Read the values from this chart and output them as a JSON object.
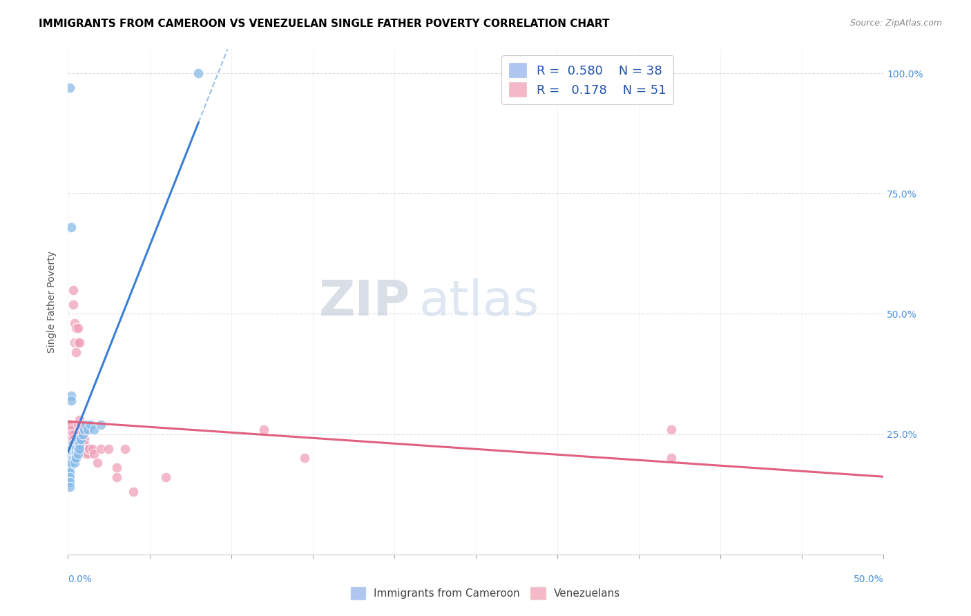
{
  "title": "IMMIGRANTS FROM CAMEROON VS VENEZUELAN SINGLE FATHER POVERTY CORRELATION CHART",
  "source": "Source: ZipAtlas.com",
  "ylabel": "Single Father Poverty",
  "yticks": [
    0.0,
    0.25,
    0.5,
    0.75,
    1.0
  ],
  "ytick_labels": [
    "",
    "25.0%",
    "50.0%",
    "75.0%",
    "100.0%"
  ],
  "xlim": [
    0.0,
    0.5
  ],
  "ylim": [
    0.0,
    1.05
  ],
  "watermark_zip": "ZIP",
  "watermark_atlas": "atlas",
  "cameroon_color": "#88bae8",
  "venezuelan_color": "#f0a0b8",
  "cameroon_line_color": "#3a7fd5",
  "venezuelan_line_color": "#e06080",
  "cameroon_points": [
    [
      0.001,
      0.97
    ],
    [
      0.001,
      0.2
    ],
    [
      0.001,
      0.18
    ],
    [
      0.001,
      0.17
    ],
    [
      0.001,
      0.16
    ],
    [
      0.001,
      0.15
    ],
    [
      0.001,
      0.14
    ],
    [
      0.002,
      0.68
    ],
    [
      0.002,
      0.33
    ],
    [
      0.002,
      0.32
    ],
    [
      0.002,
      0.22
    ],
    [
      0.002,
      0.2
    ],
    [
      0.002,
      0.19
    ],
    [
      0.003,
      0.23
    ],
    [
      0.003,
      0.22
    ],
    [
      0.003,
      0.21
    ],
    [
      0.003,
      0.2
    ],
    [
      0.004,
      0.22
    ],
    [
      0.004,
      0.21
    ],
    [
      0.004,
      0.2
    ],
    [
      0.004,
      0.19
    ],
    [
      0.005,
      0.22
    ],
    [
      0.005,
      0.21
    ],
    [
      0.005,
      0.2
    ],
    [
      0.006,
      0.24
    ],
    [
      0.006,
      0.22
    ],
    [
      0.006,
      0.21
    ],
    [
      0.007,
      0.23
    ],
    [
      0.007,
      0.22
    ],
    [
      0.008,
      0.24
    ],
    [
      0.009,
      0.25
    ],
    [
      0.01,
      0.26
    ],
    [
      0.011,
      0.27
    ],
    [
      0.012,
      0.26
    ],
    [
      0.014,
      0.27
    ],
    [
      0.016,
      0.26
    ],
    [
      0.02,
      0.27
    ],
    [
      0.08,
      1.0
    ]
  ],
  "venezuelan_points": [
    [
      0.001,
      0.27
    ],
    [
      0.002,
      0.27
    ],
    [
      0.002,
      0.26
    ],
    [
      0.002,
      0.25
    ],
    [
      0.002,
      0.24
    ],
    [
      0.002,
      0.23
    ],
    [
      0.002,
      0.22
    ],
    [
      0.002,
      0.21
    ],
    [
      0.003,
      0.25
    ],
    [
      0.003,
      0.24
    ],
    [
      0.003,
      0.23
    ],
    [
      0.003,
      0.22
    ],
    [
      0.003,
      0.21
    ],
    [
      0.003,
      0.52
    ],
    [
      0.003,
      0.55
    ],
    [
      0.004,
      0.48
    ],
    [
      0.004,
      0.44
    ],
    [
      0.005,
      0.47
    ],
    [
      0.005,
      0.42
    ],
    [
      0.006,
      0.47
    ],
    [
      0.006,
      0.44
    ],
    [
      0.006,
      0.27
    ],
    [
      0.007,
      0.28
    ],
    [
      0.007,
      0.26
    ],
    [
      0.007,
      0.44
    ],
    [
      0.008,
      0.25
    ],
    [
      0.008,
      0.24
    ],
    [
      0.008,
      0.27
    ],
    [
      0.009,
      0.24
    ],
    [
      0.009,
      0.23
    ],
    [
      0.01,
      0.24
    ],
    [
      0.01,
      0.23
    ],
    [
      0.011,
      0.21
    ],
    [
      0.012,
      0.22
    ],
    [
      0.012,
      0.21
    ],
    [
      0.013,
      0.22
    ],
    [
      0.013,
      0.22
    ],
    [
      0.015,
      0.22
    ],
    [
      0.016,
      0.21
    ],
    [
      0.018,
      0.19
    ],
    [
      0.02,
      0.22
    ],
    [
      0.025,
      0.22
    ],
    [
      0.03,
      0.18
    ],
    [
      0.03,
      0.16
    ],
    [
      0.035,
      0.22
    ],
    [
      0.04,
      0.13
    ],
    [
      0.06,
      0.16
    ],
    [
      0.12,
      0.26
    ],
    [
      0.145,
      0.2
    ],
    [
      0.37,
      0.26
    ],
    [
      0.37,
      0.2
    ]
  ],
  "title_fontsize": 11,
  "axis_label_fontsize": 10,
  "tick_fontsize": 10,
  "legend_fontsize": 13,
  "watermark_fontsize": 52,
  "source_fontsize": 9
}
